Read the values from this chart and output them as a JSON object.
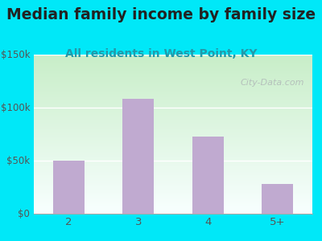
{
  "title": "Median family income by family size",
  "subtitle": "All residents in West Point, KY",
  "categories": [
    "2",
    "3",
    "4",
    "5+"
  ],
  "values": [
    50000,
    108000,
    72000,
    28000
  ],
  "bar_color": "#c0aad0",
  "ylim": [
    0,
    150000
  ],
  "yticks": [
    0,
    50000,
    100000,
    150000
  ],
  "ytick_labels": [
    "$0",
    "$50k",
    "$100k",
    "$150k"
  ],
  "title_fontsize": 13.5,
  "subtitle_fontsize": 10,
  "title_color": "#222222",
  "subtitle_color": "#2299aa",
  "tick_color": "#555555",
  "bg_outer": "#00e8f8",
  "watermark_text": "City-Data.com",
  "watermark_color": "#b0b8b8",
  "bg_plot_top": "#c8eec8",
  "bg_plot_bottom": "#f8ffff",
  "grid_color": "#ccddcc"
}
